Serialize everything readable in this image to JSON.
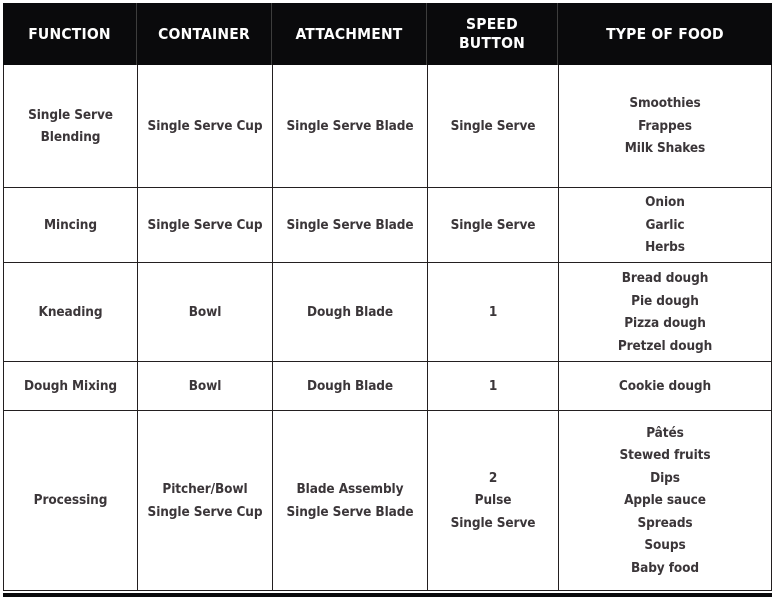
{
  "colors": {
    "header_bg": "#0a0a0c",
    "header_text": "#ffffff",
    "body_text": "#3b3639",
    "grid_line": "#231f20"
  },
  "table": {
    "header": {
      "function": "FUNCTION",
      "container": "CONTAINER",
      "attachment": "ATTACHMENT",
      "speed_button": "SPEED\nBUTTON",
      "type_of_food": "TYPE OF FOOD"
    },
    "rows": [
      {
        "function": "Single Serve\nBlending",
        "container": "Single Serve Cup",
        "attachment": "Single Serve Blade",
        "speed_button": "Single Serve",
        "type_of_food": "Smoothies\nFrappes\nMilk Shakes"
      },
      {
        "function": "Mincing",
        "container": "Single Serve Cup",
        "attachment": "Single Serve Blade",
        "speed_button": "Single Serve",
        "type_of_food": "Onion\nGarlic\nHerbs"
      },
      {
        "function": "Kneading",
        "container": "Bowl",
        "attachment": "Dough Blade",
        "speed_button": "1",
        "type_of_food": "Bread dough\nPie dough\nPizza dough\nPretzel dough"
      },
      {
        "function": "Dough Mixing",
        "container": "Bowl",
        "attachment": "Dough Blade",
        "speed_button": "1",
        "type_of_food": "Cookie dough"
      },
      {
        "function": "Processing",
        "container": "Pitcher/Bowl\nSingle Serve Cup",
        "attachment": "Blade Assembly\nSingle Serve Blade",
        "speed_button": "2\nPulse\nSingle Serve",
        "type_of_food": "Pâtés\nStewed fruits\nDips\nApple sauce\nSpreads\nSoups\nBaby food"
      }
    ]
  }
}
